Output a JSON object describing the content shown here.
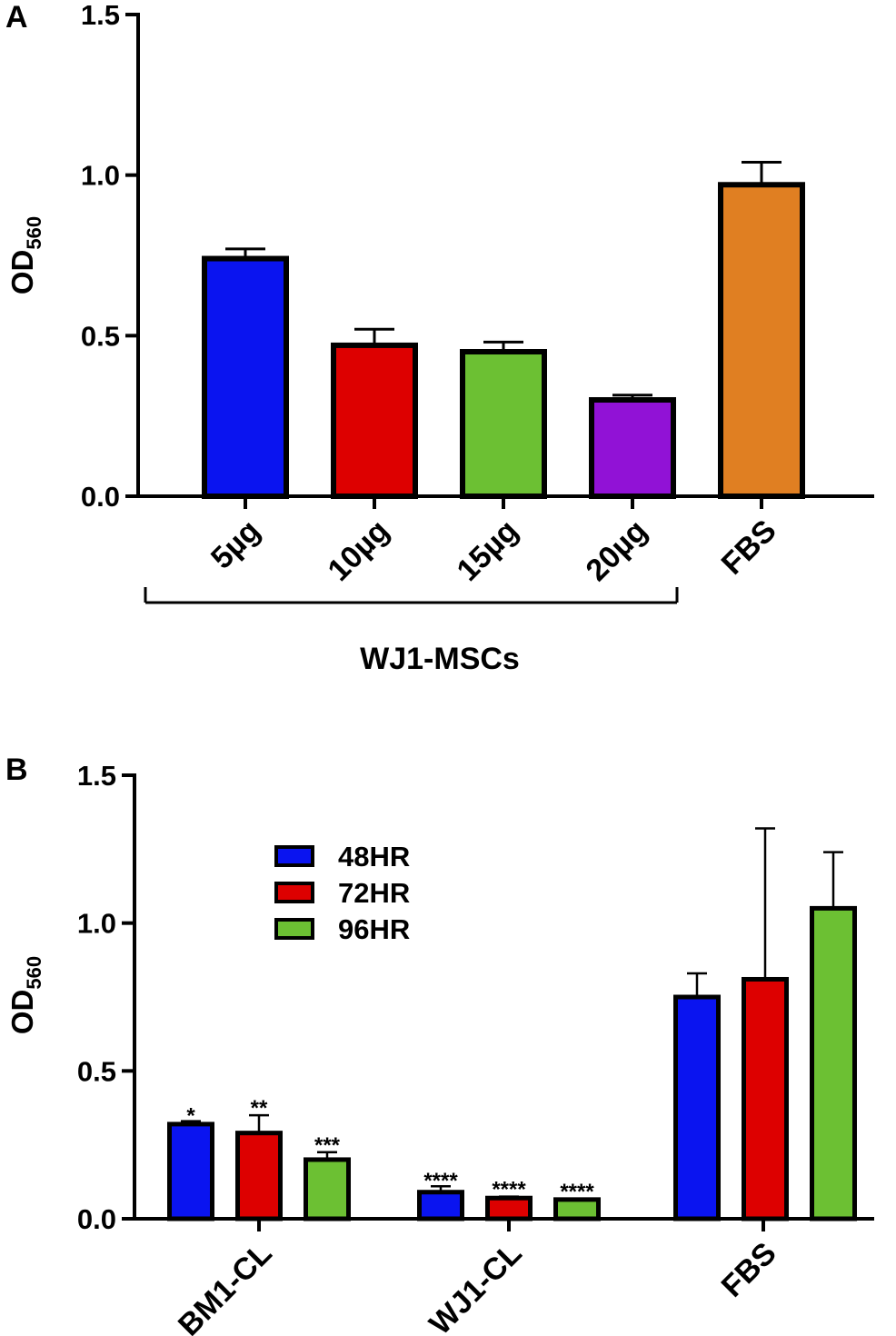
{
  "chart_data": [
    {
      "panel": "A",
      "type": "bar",
      "ylabel": "OD",
      "ylabel_sub": "560",
      "ylim": [
        0,
        1.5
      ],
      "yticks": [
        "0.0",
        "0.5",
        "1.0",
        "1.5"
      ],
      "categories": [
        "5µg",
        "10µg",
        "15µg",
        "20µg",
        "FBS"
      ],
      "values": [
        0.74,
        0.47,
        0.45,
        0.3,
        0.97
      ],
      "errors": [
        0.03,
        0.05,
        0.03,
        0.015,
        0.07
      ],
      "colors": [
        "#0a14f0",
        "#dd0000",
        "#6cc033",
        "#9112d6",
        "#e07f22"
      ],
      "group_bracket": {
        "label": "WJ1-MSCs",
        "from": 0,
        "to": 3
      }
    },
    {
      "panel": "B",
      "type": "bar",
      "ylabel": "OD",
      "ylabel_sub": "560",
      "ylim": [
        0,
        1.5
      ],
      "yticks": [
        "0.0",
        "0.5",
        "1.0",
        "1.5"
      ],
      "categories": [
        "BM1-CL",
        "WJ1-CL",
        "FBS"
      ],
      "series": [
        {
          "name": "48HR",
          "color": "#0a14f0",
          "values": [
            0.32,
            0.09,
            0.75
          ],
          "errors": [
            0.01,
            0.02,
            0.08
          ],
          "annotations": [
            "*",
            "****",
            ""
          ]
        },
        {
          "name": "72HR",
          "color": "#dd0000",
          "values": [
            0.29,
            0.07,
            0.81
          ],
          "errors": [
            0.06,
            0.005,
            0.51
          ],
          "annotations": [
            "**",
            "****",
            ""
          ]
        },
        {
          "name": "96HR",
          "color": "#6cc033",
          "values": [
            0.2,
            0.065,
            1.05
          ],
          "errors": [
            0.025,
            0.003,
            0.19
          ],
          "annotations": [
            "***",
            "****",
            ""
          ]
        }
      ],
      "legend_position": "top-left"
    }
  ]
}
